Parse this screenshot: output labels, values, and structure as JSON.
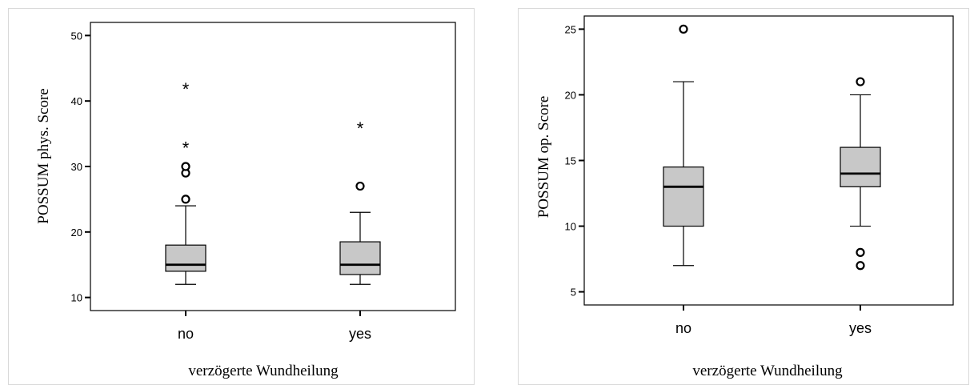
{
  "chart_data": [
    {
      "type": "boxplot",
      "title": "",
      "xlabel": "verzögerte Wundheilung",
      "ylabel": "POSSUM phys. Score",
      "ylim": [
        8,
        52
      ],
      "yticks": [
        10,
        20,
        30,
        40,
        50
      ],
      "categories": [
        "no",
        "yes"
      ],
      "boxes": [
        {
          "category": "no",
          "whisker_low": 12,
          "q1": 14,
          "median": 15,
          "q3": 18,
          "whisker_high": 24,
          "outliers": [
            25,
            29,
            30
          ],
          "extremes": [
            33,
            42
          ]
        },
        {
          "category": "yes",
          "whisker_low": 12,
          "q1": 13.5,
          "median": 15,
          "q3": 18.5,
          "whisker_high": 23,
          "outliers": [
            27
          ],
          "extremes": [
            36
          ]
        }
      ]
    },
    {
      "type": "boxplot",
      "title": "",
      "xlabel": "verzögerte Wundheilung",
      "ylabel": "POSSUM op. Score",
      "ylim": [
        4,
        26
      ],
      "yticks": [
        5,
        10,
        15,
        20,
        25
      ],
      "categories": [
        "no",
        "yes"
      ],
      "boxes": [
        {
          "category": "no",
          "whisker_low": 7,
          "q1": 10,
          "median": 13,
          "q3": 14.5,
          "whisker_high": 21,
          "outliers": [
            25
          ],
          "extremes": []
        },
        {
          "category": "yes",
          "whisker_low": 10,
          "q1": 13,
          "median": 14,
          "q3": 16,
          "whisker_high": 20,
          "outliers": [
            7,
            8,
            21
          ],
          "extremes": []
        }
      ]
    }
  ]
}
